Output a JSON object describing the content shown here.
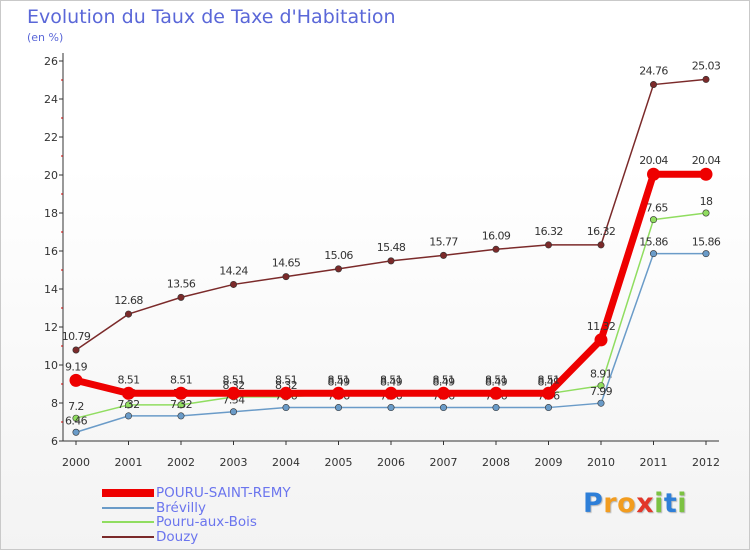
{
  "header": {
    "title": "Evolution du Taux de Taxe d'Habitation",
    "subtitle": "(en %)"
  },
  "logo": {
    "letters": [
      {
        "char": "P",
        "color": "#2e7fd8"
      },
      {
        "char": "r",
        "color": "#f29c1f"
      },
      {
        "char": "o",
        "color": "#f29c1f"
      },
      {
        "char": "x",
        "color": "#e2372a"
      },
      {
        "char": "i",
        "color": "#7cc242"
      },
      {
        "char": "t",
        "color": "#2e7fd8"
      },
      {
        "char": "i",
        "color": "#7cc242"
      }
    ]
  },
  "chart_data": {
    "type": "line",
    "x": [
      "2000",
      "2001",
      "2002",
      "2003",
      "2004",
      "2005",
      "2006",
      "2007",
      "2008",
      "2009",
      "2010",
      "2011",
      "2012"
    ],
    "ylim": [
      6,
      26
    ],
    "yticks": [
      "6",
      "8",
      "10",
      "12",
      "14",
      "16",
      "18",
      "20",
      "22",
      "24",
      "26"
    ],
    "grid": false,
    "legend_position": "bottom-left",
    "series": [
      {
        "name": "Douzy",
        "color": "#7b2a2a",
        "values": [
          10.79,
          12.68,
          13.56,
          14.24,
          14.65,
          15.06,
          15.48,
          15.77,
          16.09,
          16.32,
          16.32,
          24.76,
          25.03
        ],
        "labels": [
          "10.79",
          "12.68",
          "13.56",
          "14.24",
          "14.65",
          "15.06",
          "15.48",
          "15.77",
          "16.09",
          "16.32",
          "16.32",
          "24.76",
          "25.03"
        ]
      },
      {
        "name": "Pouru-aux-Bois",
        "color": "#90dd60",
        "values": [
          7.2,
          7.9,
          7.9,
          8.32,
          8.32,
          8.49,
          8.49,
          8.49,
          8.49,
          8.49,
          8.91,
          17.65,
          18
        ],
        "labels": [
          "7.2",
          "7.9",
          "7.9",
          "8.32",
          "8.32",
          "8.49",
          "8.49",
          "8.49",
          "8.49",
          "8.49",
          "8.91",
          "17.65",
          "18"
        ]
      },
      {
        "name": "Brévilly",
        "color": "#6a9bc8",
        "values": [
          6.46,
          7.32,
          7.32,
          7.54,
          7.76,
          7.76,
          7.76,
          7.76,
          7.76,
          7.76,
          7.99,
          15.86,
          15.86
        ],
        "labels": [
          "6.46",
          "7.32",
          "7.32",
          "7.54",
          "7.76",
          "7.76",
          "7.76",
          "7.76",
          "7.76",
          "7.76",
          "7.99",
          "15.86",
          "15.86"
        ]
      },
      {
        "name": "POURU-SAINT-REMY",
        "color": "#ee0000",
        "values": [
          9.19,
          8.51,
          8.51,
          8.51,
          8.51,
          8.51,
          8.51,
          8.51,
          8.51,
          8.51,
          11.32,
          20.04,
          20.04
        ],
        "labels": [
          "9.19",
          "8.51",
          "8.51",
          "8.51",
          "8.51",
          "8.51",
          "8.51",
          "8.51",
          "8.51",
          "8.51",
          "11.32",
          "20.04",
          "20.04"
        ]
      }
    ]
  }
}
